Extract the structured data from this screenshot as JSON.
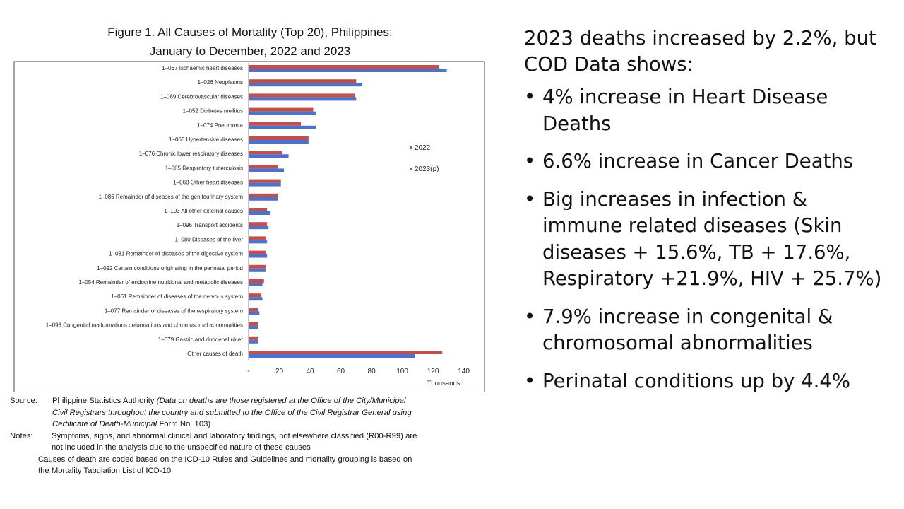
{
  "figure": {
    "title_line1": "Figure 1. All Causes of Mortality (Top 20), Philippines:",
    "title_line2": "January to December, 2022 and 2023"
  },
  "chart_data": {
    "type": "bar",
    "orientation": "horizontal",
    "categories": [
      "1–067 Ischaemic heart diseases",
      "1–026 Neoplasms",
      "1–069 Cerebrovascular diseases",
      "1–052 Diabetes mellitus",
      "1–074 Pneumonia",
      "1–066 Hypertensive diseases",
      "1–076 Chronic lower respiratory diseases",
      "1–005 Respiratory tuberculosis",
      "1–068 Other heart diseases",
      "1–086 Remainder of diseases of the genitourinary system",
      "1–103 All other external causes",
      "1–096 Transport accidents",
      "1–080 Diseases of the liver",
      "1–081 Remainder of diseases of the digestive system",
      "1–092 Certain conditions originating in the perinatal period",
      "1–054 Remainder of endocrine nutritional and metabolic diseases",
      "1–061 Remainder of diseases of the nervous system",
      "1–077 Remainder of diseases of the respiratory system",
      "1–093 Congenital malformations deformations and chromosomal abnormalities",
      "1–079 Gastric and duodenal ulcer",
      "Other causes of death"
    ],
    "series": [
      {
        "name": "2022",
        "color": "#c0504d",
        "values": [
          124,
          70,
          69,
          42,
          34,
          39,
          22,
          19,
          21,
          19,
          12,
          12,
          11,
          11,
          11,
          10,
          8,
          6,
          6,
          6,
          126
        ]
      },
      {
        "name": "2023(p)",
        "color": "#4f72c9",
        "values": [
          129,
          74,
          70,
          44,
          44,
          39,
          26,
          23,
          21,
          19,
          14,
          13,
          12,
          12,
          11,
          9,
          9,
          7,
          6,
          6,
          108
        ]
      }
    ],
    "xlim": [
      0,
      140
    ],
    "x_ticks": [
      "-",
      "20",
      "40",
      "60",
      "80",
      "100",
      "120",
      "140"
    ],
    "xlabel": "Thousands",
    "legend_position": "right",
    "grid": false
  },
  "source": {
    "key": "Source:",
    "org": "Philippine Statistics Authority ",
    "line1_italic": "(Data on deaths are those registered at the Office of the City/Municipal",
    "line2_italic": "Civil Registrars throughout the country and submitted to the Office of the Civil Registrar General using",
    "line3_italic": "Certificate of Death-Municipal",
    "line3_rest": " Form No. 103)"
  },
  "notes": {
    "key": "Notes:",
    "line1": "Symptoms, signs, and abnormal clinical and laboratory findings, not elsewhere classified (R00-R99) are",
    "line2": "not included in the analysis due to the unspecified nature of these causes",
    "line3": "Causes of death are coded based on the ICD-10 Rules and Guidelines and mortality grouping is based on",
    "line4": "the Mortality Tabulation List of ICD-10"
  },
  "summary": {
    "intro": "2023 deaths increased by 2.2%, but COD Data shows:",
    "bullet_char": "•",
    "bullets": [
      "4% increase in Heart Disease Deaths",
      "6.6% increase in Cancer Deaths",
      "Big increases in infection & immune related diseases  (Skin diseases + 15.6%, TB + 17.6%, Respiratory +21.9%, HIV + 25.7%)",
      "7.9% increase in congenital & chromosomal abnormalities",
      "Perinatal conditions up by 4.4%"
    ]
  }
}
